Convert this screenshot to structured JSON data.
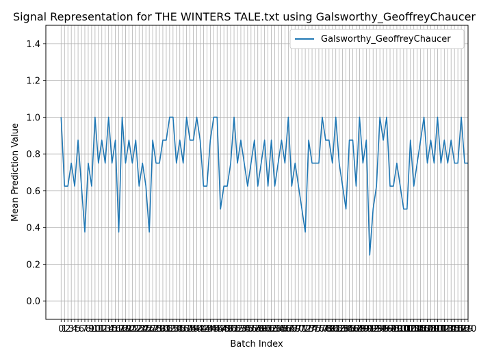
{
  "chart_data": {
    "type": "line",
    "title": "Signal Representation for THE WINTERS TALE.txt using Galsworthy_GeoffreyChaucer",
    "xlabel": "Batch Index",
    "ylabel": "Mean Prediction Value",
    "xlim": [
      -4.5,
      120
    ],
    "ylim": [
      -0.1,
      1.5
    ],
    "yticks": [
      0.0,
      0.2,
      0.4,
      0.6,
      0.8,
      1.0,
      1.2,
      1.4
    ],
    "grid": true,
    "legend_position": "top-right",
    "series": [
      {
        "name": "Galsworthy_GeoffreyChaucer",
        "color": "#1f77b4",
        "values": [
          1.0,
          0.625,
          0.625,
          0.75,
          0.625,
          0.875,
          0.625,
          0.375,
          0.75,
          0.625,
          1.0,
          0.75,
          0.875,
          0.75,
          1.0,
          0.75,
          0.875,
          0.375,
          1.0,
          0.75,
          0.875,
          0.75,
          0.875,
          0.625,
          0.75,
          0.625,
          0.375,
          0.875,
          0.75,
          0.75,
          0.875,
          0.875,
          1.0,
          1.0,
          0.75,
          0.875,
          0.75,
          1.0,
          0.875,
          0.875,
          1.0,
          0.875,
          0.625,
          0.625,
          0.875,
          1.0,
          1.0,
          0.5,
          0.625,
          0.625,
          0.75,
          1.0,
          0.75,
          0.875,
          0.75,
          0.625,
          0.75,
          0.875,
          0.625,
          0.75,
          0.875,
          0.625,
          0.875,
          0.625,
          0.75,
          0.875,
          0.75,
          1.0,
          0.625,
          0.75,
          0.625,
          0.5,
          0.375,
          0.875,
          0.75,
          0.75,
          0.75,
          1.0,
          0.875,
          0.875,
          0.75,
          1.0,
          0.75,
          0.625,
          0.5,
          0.875,
          0.875,
          0.625,
          1.0,
          0.75,
          0.875,
          0.25,
          0.5,
          0.625,
          1.0,
          0.875,
          1.0,
          0.625,
          0.625,
          0.75,
          0.625,
          0.5,
          0.5,
          0.875,
          0.625,
          0.75,
          0.875,
          1.0,
          0.75,
          0.875,
          0.75,
          1.0,
          0.75,
          0.875,
          0.75,
          0.875,
          0.75,
          0.75,
          1.0,
          0.75,
          0.75
        ]
      }
    ]
  }
}
